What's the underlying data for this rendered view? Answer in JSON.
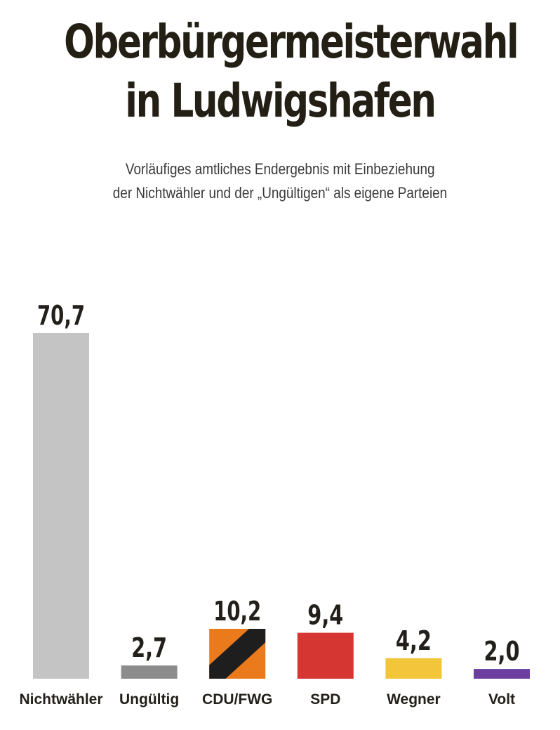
{
  "title_line1": "Oberbürgermeisterwahl",
  "title_line2": "in Ludwigshafen",
  "subtitle_line1": "Vorläufiges amtliches Endergebnis mit Einbeziehung",
  "subtitle_line2": "der Nichtwähler und der „Ungültigen“ als eigene Parteien",
  "chart_data": {
    "type": "bar",
    "title": "Oberbürgermeisterwahl in Ludwigshafen",
    "subtitle": "Vorläufiges amtliches Endergebnis mit Einbeziehung der Nichtwähler und der „Ungültigen“ als eigene Parteien",
    "categories": [
      "Nichtwähler",
      "Ungültig",
      "CDU/FWG",
      "SPD",
      "Wegner",
      "Volt"
    ],
    "values": [
      70.7,
      2.7,
      10.2,
      9.4,
      4.2,
      2.0
    ],
    "value_labels": [
      "70,7",
      "2,7",
      "10,2",
      "9,4",
      "4,2",
      "2,0"
    ],
    "colors": [
      "#c4c4c4",
      "#8c8c8c",
      "#ea7a1c",
      "#d63631",
      "#f2c53a",
      "#6c3ea0"
    ],
    "stripe_color": "#1e1e1e",
    "xlabel": "",
    "ylabel": "",
    "ylim": [
      0,
      70.7
    ],
    "grid": false,
    "legend": "none"
  }
}
